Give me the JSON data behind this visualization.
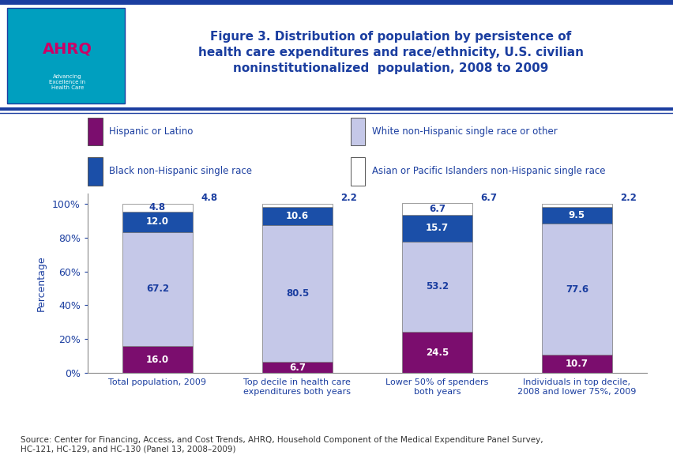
{
  "title": "Figure 3. Distribution of population by persistence of\nhealth care expenditures and race/ethnicity, U.S. civilian\nnoninstitutionalized  population, 2008 to 2009",
  "categories": [
    "Total population, 2009",
    "Top decile in health care\nexpenditures both years",
    "Lower 50% of spenders\nboth years",
    "Individuals in top decile,\n2008 and lower 75%, 2009"
  ],
  "series": {
    "Hispanic or Latino": [
      16.0,
      6.7,
      24.5,
      10.7
    ],
    "White non-Hispanic single race or other": [
      67.2,
      80.5,
      53.2,
      77.6
    ],
    "Black non-Hispanic single race": [
      12.0,
      10.6,
      15.7,
      9.5
    ],
    "Asian or Pacific Islanders non-Hispanic single race": [
      4.8,
      2.2,
      6.7,
      2.2
    ]
  },
  "colors": {
    "Hispanic or Latino": "#7B0D6E",
    "White non-Hispanic single race or other": "#C5C8E8",
    "Black non-Hispanic single race": "#1B4FA8",
    "Asian or Pacific Islanders non-Hispanic single race": "#FFFFFF"
  },
  "legend_order": [
    "Hispanic or Latino",
    "White non-Hispanic single race or other",
    "Black non-Hispanic single race",
    "Asian or Pacific Islanders non-Hispanic single race"
  ],
  "ylabel": "Percentage",
  "yticks": [
    0,
    20,
    40,
    60,
    80,
    100
  ],
  "yticklabels": [
    "0%",
    "20%",
    "40%",
    "60%",
    "80%",
    "100%"
  ],
  "source_text": "Source: Center for Financing, Access, and Cost Trends, AHRQ, Household Component of the Medical Expenditure Panel Survey,\nHC-121, HC-129, and HC-130 (Panel 13, 2008–2009)",
  "bar_width": 0.5,
  "background_color": "#FFFFFF",
  "border_color": "#1B3EA0",
  "title_color": "#1B3EA0",
  "axis_color": "#1B3EA0",
  "label_fontsize": 8.5,
  "title_fontsize": 11
}
